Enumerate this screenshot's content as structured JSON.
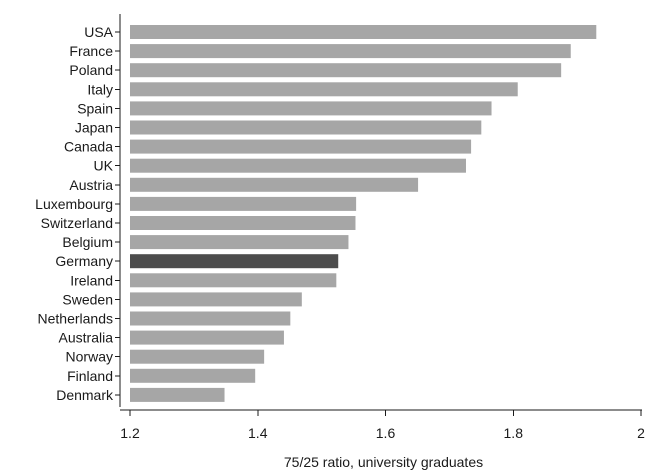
{
  "chart_data": {
    "type": "bar",
    "orientation": "horizontal",
    "categories": [
      "USA",
      "France",
      "Poland",
      "Italy",
      "Spain",
      "Japan",
      "Canada",
      "UK",
      "Austria",
      "Luxembourg",
      "Switzerland",
      "Belgium",
      "Germany",
      "Ireland",
      "Sweden",
      "Netherlands",
      "Australia",
      "Norway",
      "Finland",
      "Denmark"
    ],
    "values": [
      1.93,
      1.89,
      1.875,
      1.807,
      1.766,
      1.75,
      1.734,
      1.726,
      1.651,
      1.554,
      1.553,
      1.542,
      1.526,
      1.523,
      1.469,
      1.451,
      1.441,
      1.41,
      1.396,
      1.348
    ],
    "highlight": "Germany",
    "xlabel": "75/25 ratio, university graduates",
    "ylabel": "",
    "xlim": [
      1.2,
      2.0
    ],
    "xticks": [
      1.2,
      1.4,
      1.6,
      1.8,
      2
    ],
    "xtick_labels": [
      "1.2",
      "1.4",
      "1.6",
      "1.8",
      "2"
    ],
    "grid": false,
    "colors": {
      "bar": "#a6a6a6",
      "highlight": "#4d4d4d",
      "axis": "#1a1a1a"
    }
  }
}
